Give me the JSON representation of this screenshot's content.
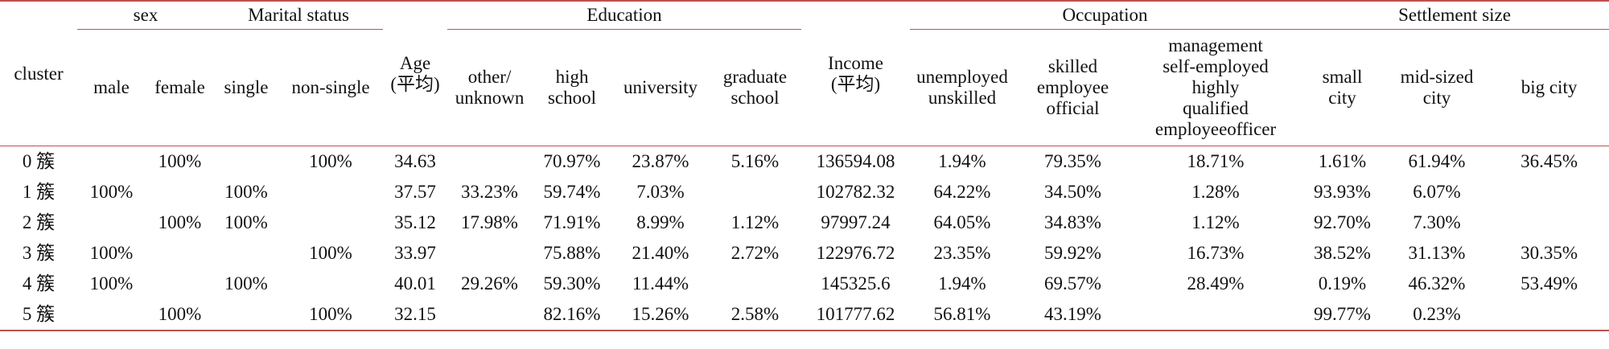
{
  "groups": {
    "sex": "sex",
    "marital": "Marital status",
    "education": "Education",
    "occupation": "Occupation",
    "settlement": "Settlement size"
  },
  "columns": {
    "cluster": "cluster",
    "male": "male",
    "female": "female",
    "single": "single",
    "non_single": "non-single",
    "age_l1": "Age",
    "age_l2": "(平均)",
    "edu_other_l1": "other/",
    "edu_other_l2": "unknown",
    "edu_high_l1": "high",
    "edu_high_l2": "school",
    "edu_univ": "university",
    "edu_grad_l1": "graduate",
    "edu_grad_l2": "school",
    "income_l1": "Income",
    "income_l2": "(平均)",
    "occ_unemp_l1": "unemployed",
    "occ_unemp_l2": "unskilled",
    "occ_skilled_l1": "skilled",
    "occ_skilled_l2": "employee",
    "occ_skilled_l3": "official",
    "occ_mgmt_l1": "management",
    "occ_mgmt_l2": "self-employed",
    "occ_mgmt_l3": "highly",
    "occ_mgmt_l4": "qualified",
    "occ_mgmt_l5": "employeeofficer",
    "set_small_l1": "small",
    "set_small_l2": "city",
    "set_mid_l1": "mid-sized",
    "set_mid_l2": "city",
    "set_big": "big city"
  },
  "rows": [
    {
      "cluster": "0 簇",
      "male": "",
      "female": "100%",
      "single": "",
      "non_single": "100%",
      "age": "34.63",
      "edu_other": "",
      "edu_high": "70.97%",
      "edu_univ": "23.87%",
      "edu_grad": "5.16%",
      "income": "136594.08",
      "occ_unemp": "1.94%",
      "occ_skilled": "79.35%",
      "occ_mgmt": "18.71%",
      "set_small": "1.61%",
      "set_mid": "61.94%",
      "set_big": "36.45%"
    },
    {
      "cluster": "1 簇",
      "male": "100%",
      "female": "",
      "single": "100%",
      "non_single": "",
      "age": "37.57",
      "edu_other": "33.23%",
      "edu_high": "59.74%",
      "edu_univ": "7.03%",
      "edu_grad": "",
      "income": "102782.32",
      "occ_unemp": "64.22%",
      "occ_skilled": "34.50%",
      "occ_mgmt": "1.28%",
      "set_small": "93.93%",
      "set_mid": "6.07%",
      "set_big": ""
    },
    {
      "cluster": "2 簇",
      "male": "",
      "female": "100%",
      "single": "100%",
      "non_single": "",
      "age": "35.12",
      "edu_other": "17.98%",
      "edu_high": "71.91%",
      "edu_univ": "8.99%",
      "edu_grad": "1.12%",
      "income": "97997.24",
      "occ_unemp": "64.05%",
      "occ_skilled": "34.83%",
      "occ_mgmt": "1.12%",
      "set_small": "92.70%",
      "set_mid": "7.30%",
      "set_big": ""
    },
    {
      "cluster": "3 簇",
      "male": "100%",
      "female": "",
      "single": "",
      "non_single": "100%",
      "age": "33.97",
      "edu_other": "",
      "edu_high": "75.88%",
      "edu_univ": "21.40%",
      "edu_grad": "2.72%",
      "income": "122976.72",
      "occ_unemp": "23.35%",
      "occ_skilled": "59.92%",
      "occ_mgmt": "16.73%",
      "set_small": "38.52%",
      "set_mid": "31.13%",
      "set_big": "30.35%"
    },
    {
      "cluster": "4 簇",
      "male": "100%",
      "female": "",
      "single": "100%",
      "non_single": "",
      "age": "40.01",
      "edu_other": "29.26%",
      "edu_high": "59.30%",
      "edu_univ": "11.44%",
      "edu_grad": "",
      "income": "145325.6",
      "occ_unemp": "1.94%",
      "occ_skilled": "69.57%",
      "occ_mgmt": "28.49%",
      "set_small": "0.19%",
      "set_mid": "46.32%",
      "set_big": "53.49%"
    },
    {
      "cluster": "5 簇",
      "male": "",
      "female": "100%",
      "single": "",
      "non_single": "100%",
      "age": "32.15",
      "edu_other": "",
      "edu_high": "82.16%",
      "edu_univ": "15.26%",
      "edu_grad": "2.58%",
      "income": "101777.62",
      "occ_unemp": "56.81%",
      "occ_skilled": "43.19%",
      "occ_mgmt": "",
      "set_small": "99.77%",
      "set_mid": "0.23%",
      "set_big": ""
    }
  ]
}
